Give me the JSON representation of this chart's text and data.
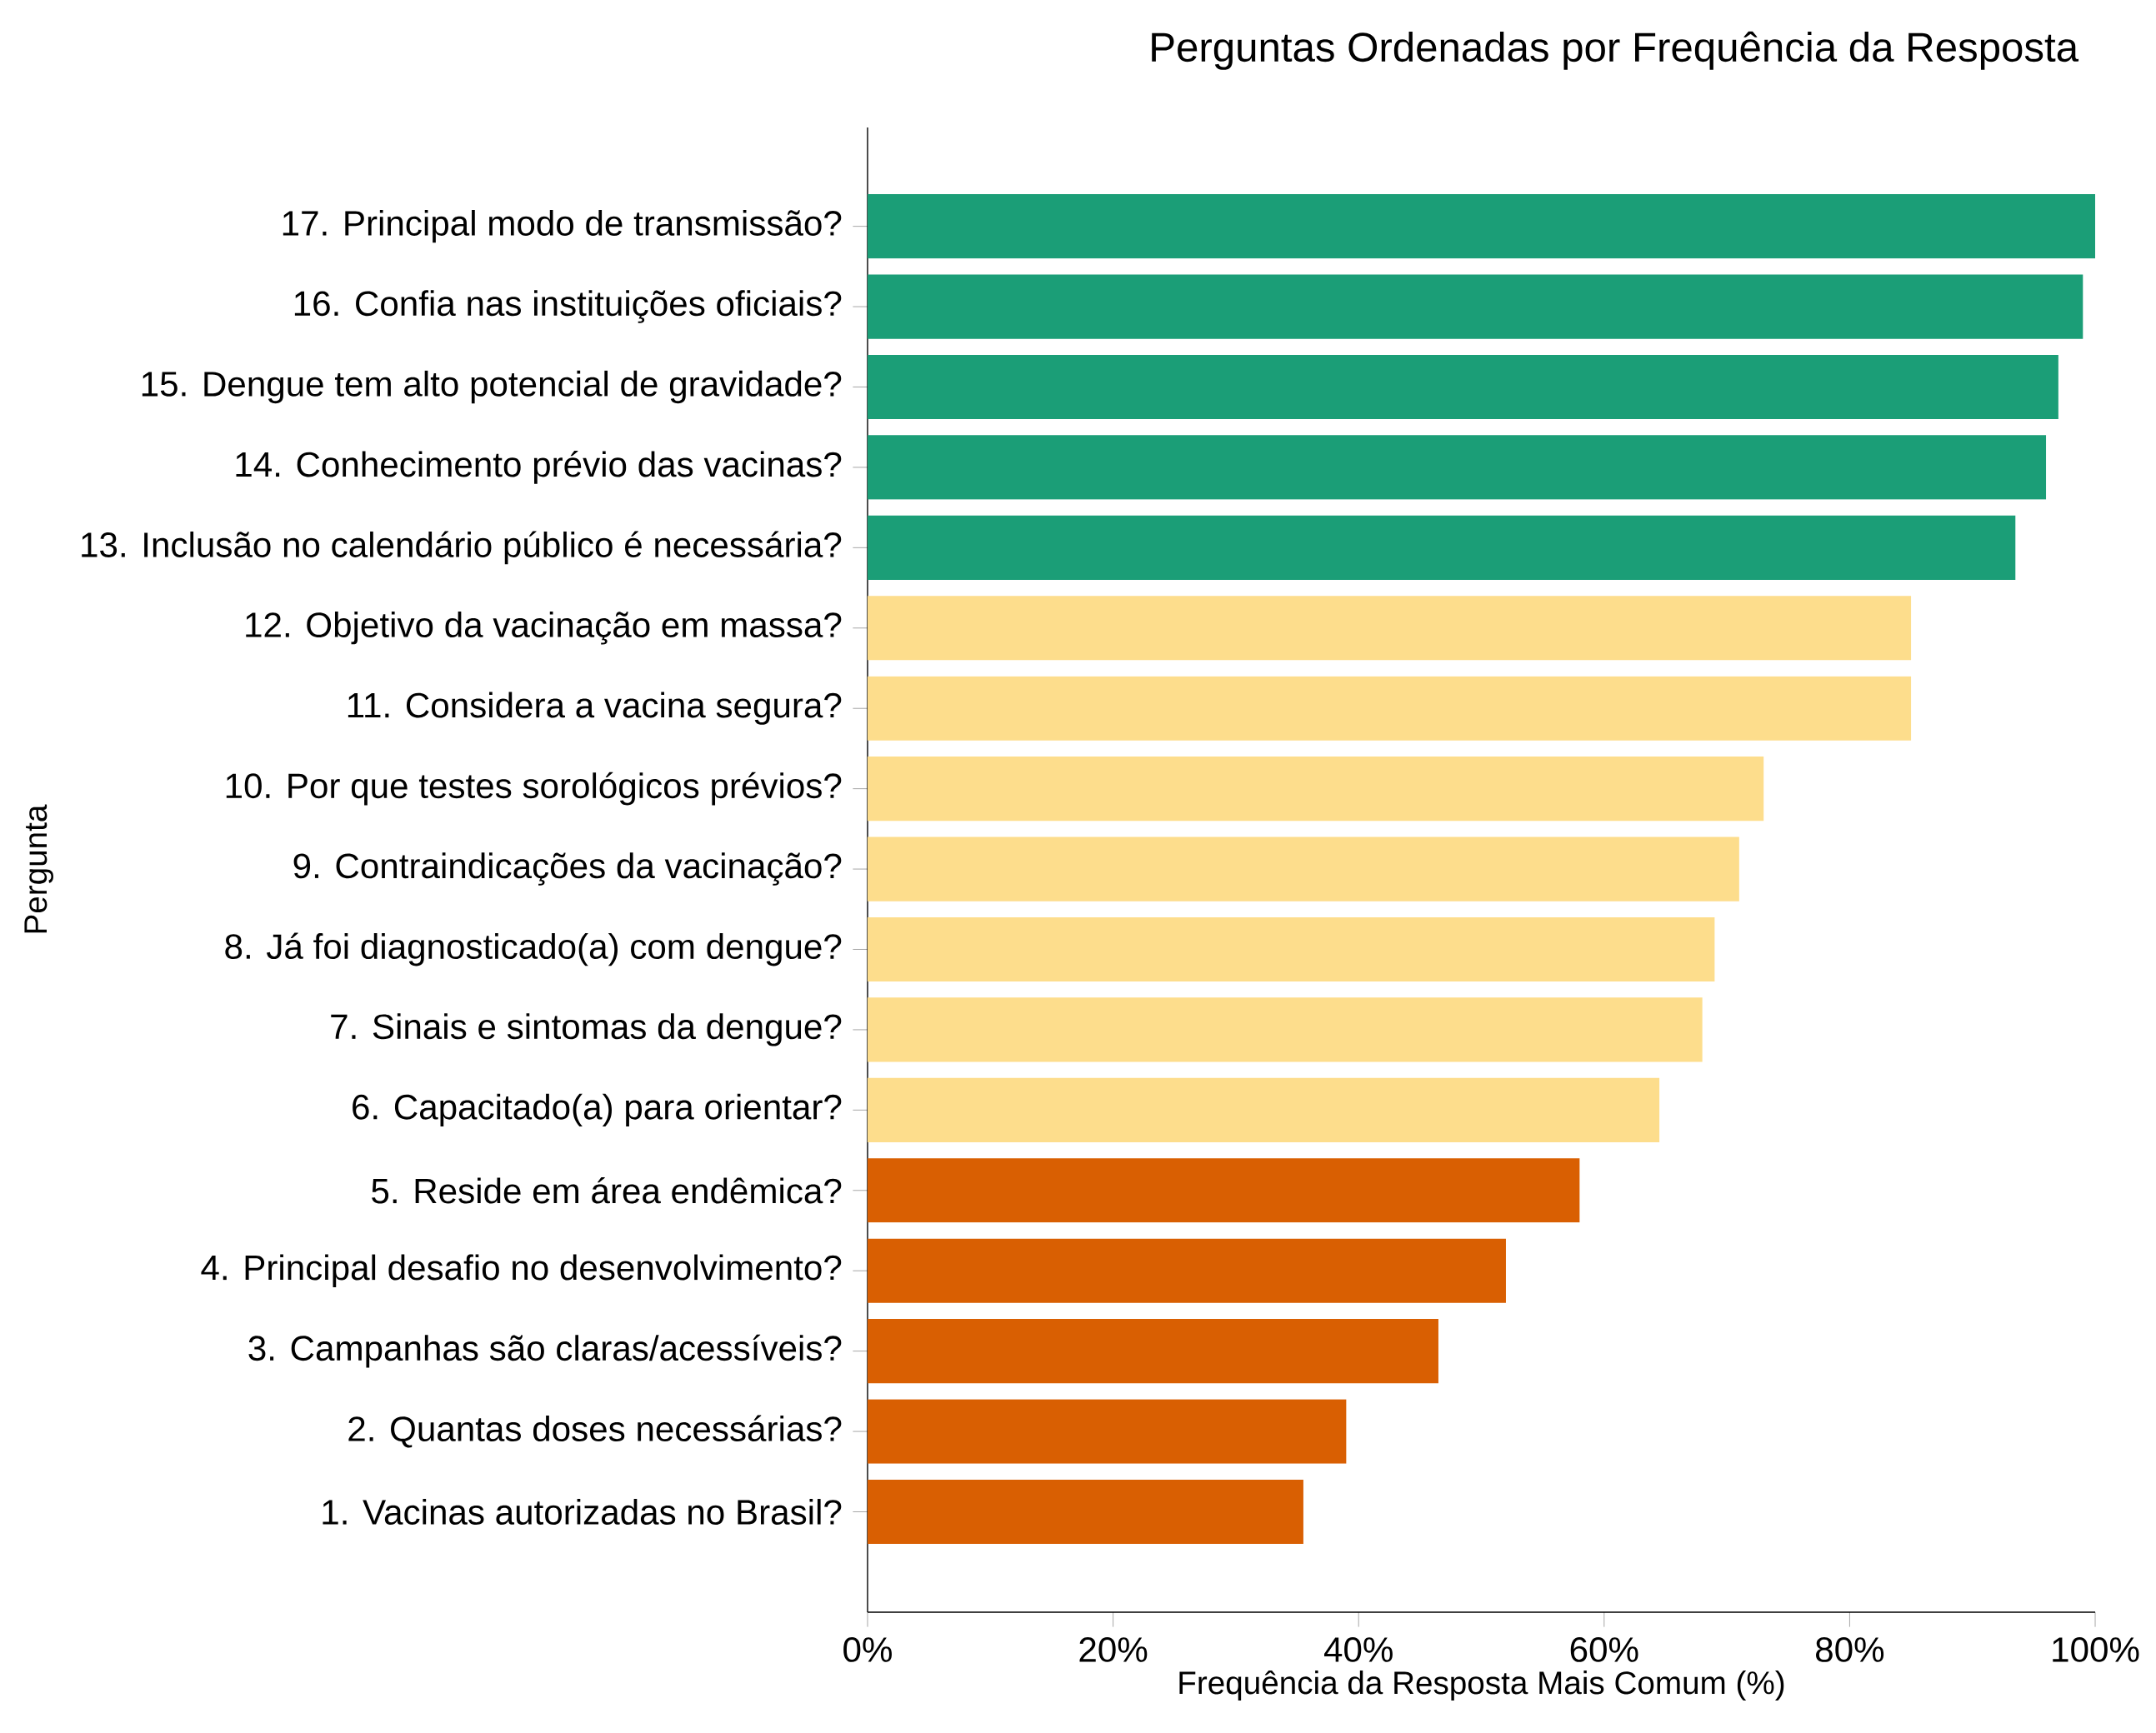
{
  "chart_data": {
    "type": "bar",
    "orientation": "horizontal",
    "title": "Perguntas Ordenadas por Frequência da Resposta",
    "xlabel": "Frequência da Resposta Mais Comum (%)",
    "ylabel": "Pergunta",
    "categories": [
      "17. Principal modo de transmissão?",
      "16. Confia nas instituições oficiais?",
      "15. Dengue tem alto potencial de gravidade?",
      "14. Conhecimento prévio das vacinas?",
      "13. Inclusão no calendário público é necessária?",
      "12. Objetivo da vacinação em massa?",
      "11. Considera a vacina segura?",
      "10. Por que testes sorológicos prévios?",
      "9. Contraindicações da vacinação?",
      "8. Já foi diagnosticado(a) com dengue?",
      "7. Sinais e sintomas da dengue?",
      "6. Capacitado(a) para orientar?",
      "5. Reside em área endêmica?",
      "4. Principal desafio no desenvolvimento?",
      "3. Campanhas são claras/acessíveis?",
      "2. Quantas doses necessárias?",
      "1. Vacinas autorizadas no Brasil?"
    ],
    "values": [
      100,
      99,
      97,
      96,
      93.5,
      85,
      85,
      73,
      71,
      69,
      68,
      64.5,
      58,
      52,
      46.5,
      39,
      35.5
    ],
    "colors": [
      "#1b9e77",
      "#1b9e77",
      "#1b9e77",
      "#1b9e77",
      "#1b9e77",
      "#fddd8c",
      "#fddd8c",
      "#fddd8c",
      "#fddd8c",
      "#fddd8c",
      "#fddd8c",
      "#fddd8c",
      "#d95f02",
      "#d95f02",
      "#d95f02",
      "#d95f02",
      "#d95f02"
    ],
    "xlim": [
      0,
      100
    ],
    "xticks": [
      {
        "value": 0,
        "label": "0%"
      },
      {
        "value": 20,
        "label": "20%"
      },
      {
        "value": 40,
        "label": "40%"
      },
      {
        "value": 60,
        "label": "60%"
      },
      {
        "value": 80,
        "label": "80%"
      },
      {
        "value": 100,
        "label": "100%"
      }
    ],
    "grid": false
  }
}
